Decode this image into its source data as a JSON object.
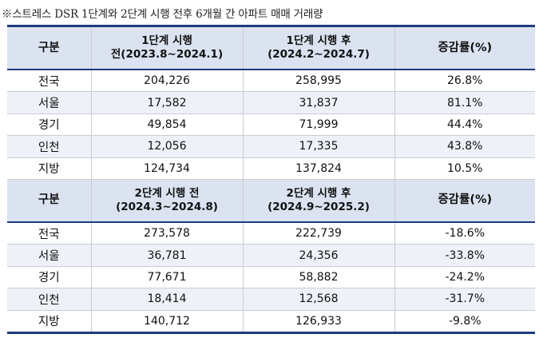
{
  "caption": "※스트레스 DSR 1단계와 2단계 시행 전후 6개월 간 아파트 매매 거래량",
  "table1": {
    "headers": {
      "category": "구분",
      "before_line1": "1단계 시행",
      "before_line2": "전(2023.8~2024.1)",
      "after_line1": "1단계 시행 후",
      "after_line2": "(2024.2~2024.7)",
      "change": "증감률(%)"
    },
    "rows": [
      {
        "region": "전국",
        "before": "204,226",
        "after": "258,995",
        "change": "26.8%"
      },
      {
        "region": "서울",
        "before": "17,582",
        "after": "31,837",
        "change": "81.1%"
      },
      {
        "region": "경기",
        "before": "49,854",
        "after": "71,999",
        "change": "44.4%"
      },
      {
        "region": "인천",
        "before": "12,056",
        "after": "17,335",
        "change": "43.8%"
      },
      {
        "region": "지방",
        "before": "124,734",
        "after": "137,824",
        "change": "10.5%"
      }
    ]
  },
  "table2": {
    "headers": {
      "category": "구분",
      "before_line1": "2단계 시행 전",
      "before_line2": "(2024.3~2024.8)",
      "after_line1": "2단계 시행 후",
      "after_line2": "(2024.9~2025.2)",
      "change": "증감률(%)"
    },
    "rows": [
      {
        "region": "전국",
        "before": "273,578",
        "after": "222,739",
        "change": "-18.6%"
      },
      {
        "region": "서울",
        "before": "36,781",
        "after": "24,356",
        "change": "-33.8%"
      },
      {
        "region": "경기",
        "before": "77,671",
        "after": "58,882",
        "change": "-24.2%"
      },
      {
        "region": "인천",
        "before": "18,414",
        "after": "12,568",
        "change": "-31.7%"
      },
      {
        "region": "지방",
        "before": "140,712",
        "after": "126,933",
        "change": "-9.8%"
      }
    ]
  },
  "colors": {
    "header_bg": "#dbe3f1",
    "rule": "#1f3a80",
    "row_shade": "#eef1f7"
  }
}
